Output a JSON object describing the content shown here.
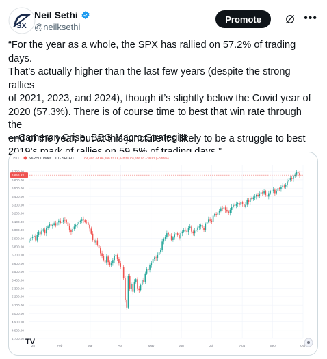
{
  "author": {
    "name": "Neil Sethi",
    "handle": "@neilksethi",
    "avatar_text": "SX"
  },
  "actions": {
    "promote_label": "Promote",
    "grok_icon": "grok-icon",
    "more_icon": "more-icon"
  },
  "tweet": {
    "lines": [
      "“For the year as a whole, the SPX has rallied on 57.2% of trading days.",
      "That’s actually higher than the last few years (despite the strong rallies",
      "of 2021, 2023, and 2024), though it’s slightly below the Covid year of",
      "2020 (57.3%). There is of course time to best that win rate through the",
      "end of the year, but at this juncture it’s likely to be a struggle to best",
      "2019’s mark of rallies on 59.5% of trading days.”"
    ],
    "attribution": "—Cameron Crise, BBG Macro Strategist"
  },
  "chart_data": {
    "type": "candlestick",
    "title": "S&P 500 Index · 1D · SPCFD",
    "ohlc_readout": "O6,693.44 H6,699.52 L6,640.58 C6,656.93 −36.81 (−0.55%)",
    "price_tag": "6,656.93",
    "currency": "USD",
    "logo": "TV",
    "y_ticks": [
      "6,700.00",
      "6,600.00",
      "6,500.00",
      "6,400.00",
      "6,300.00",
      "6,200.00",
      "6,100.00",
      "6,000.00",
      "5,900.00",
      "5,800.00",
      "5,700.00",
      "5,600.00",
      "5,500.00",
      "5,400.00",
      "5,300.00",
      "5,200.00",
      "5,100.00",
      "5,000.00",
      "4,900.00",
      "4,800.00",
      "4,700.00"
    ],
    "ylim": [
      4700,
      6780
    ],
    "x_ticks": [
      "Feb",
      "Mar",
      "Apr",
      "May",
      "Jun",
      "Jul",
      "Aug",
      "Sep",
      "Oct"
    ],
    "x_tick_positions": [
      1,
      2,
      3,
      4,
      5,
      6,
      7,
      8,
      9
    ],
    "x_first_label": "'25",
    "colors": {
      "up": "#26a69a",
      "down": "#ef5350",
      "tag": "#ef5350"
    },
    "closes": [
      5870,
      5905,
      5918,
      5930,
      5875,
      5940,
      5980,
      5950,
      5990,
      6005,
      5960,
      6020,
      6040,
      6070,
      6045,
      6060,
      6080,
      6055,
      6090,
      6110,
      6085,
      6100,
      6120,
      6115,
      6090,
      6050,
      5995,
      5970,
      6010,
      6040,
      6060,
      6075,
      6095,
      6110,
      6130,
      6115,
      6100,
      6090,
      6060,
      6015,
      5955,
      5880,
      5850,
      5875,
      5820,
      5780,
      5720,
      5690,
      5640,
      5612,
      5680,
      5615,
      5575,
      5600,
      5640,
      5690,
      5700,
      5650,
      5600,
      5560,
      5560,
      5420,
      5160,
      5070,
      5450,
      5290,
      5350,
      5260,
      5380,
      5410,
      5300,
      5280,
      5340,
      5400,
      5380,
      5480,
      5530,
      5520,
      5580,
      5610,
      5650,
      5670,
      5660,
      5700,
      5740,
      5760,
      5860,
      5890,
      5920,
      5960,
      5950,
      5930,
      5880,
      5910,
      5950,
      5960,
      5940,
      5900,
      5960,
      5980,
      6000,
      5990,
      5970,
      6020,
      6040,
      5980,
      5960,
      5990,
      6000,
      6030,
      6040,
      6060,
      6020,
      6000,
      6070,
      6100,
      6130,
      6110,
      6100,
      6170,
      6190,
      6180,
      6210,
      6230,
      6260,
      6250,
      6270,
      6240,
      6220,
      6200,
      6240,
      6280,
      6300,
      6290,
      6310,
      6320,
      6300,
      6330,
      6310,
      6280,
      6300,
      6360,
      6330,
      6380,
      6370,
      6390,
      6400,
      6420,
      6410,
      6430,
      6450,
      6440,
      6460,
      6420,
      6400,
      6440,
      6460,
      6470,
      6480,
      6440,
      6460,
      6500,
      6490,
      6510,
      6530,
      6520,
      6540,
      6580,
      6600,
      6620,
      6610,
      6640,
      6660,
      6690,
      6680,
      6656
    ]
  }
}
